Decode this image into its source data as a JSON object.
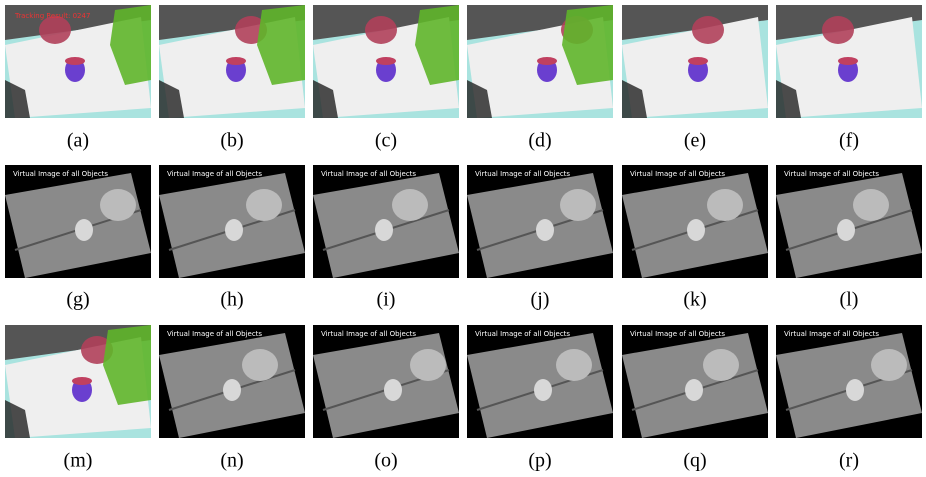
{
  "panels": [
    {
      "caption": "(a)",
      "overlay": "Tracking Result: 0247"
    },
    {
      "caption": "(b)"
    },
    {
      "caption": "(c)"
    },
    {
      "caption": "(d)"
    },
    {
      "caption": "(e)"
    },
    {
      "caption": "(f)"
    },
    {
      "caption": "(g)",
      "overlay": "Virtual Image of all Objects"
    },
    {
      "caption": "(h)",
      "overlay": "Virtual Image of all Objects"
    },
    {
      "caption": "(i)",
      "overlay": "Virtual Image of all Objects"
    },
    {
      "caption": "(j)",
      "overlay": "Virtual Image of all Objects"
    },
    {
      "caption": "(k)",
      "overlay": "Virtual Image of all Objects"
    },
    {
      "caption": "(l)",
      "overlay": "Virtual Image of all Objects"
    },
    {
      "caption": "(m)"
    },
    {
      "caption": "(n)",
      "overlay": "Virtual Image of all Objects"
    },
    {
      "caption": "(o)",
      "overlay": "Virtual Image of all Objects"
    },
    {
      "caption": "(p)",
      "overlay": "Virtual Image of all Objects"
    },
    {
      "caption": "(q)",
      "overlay": "Virtual Image of all Objects"
    },
    {
      "caption": "(r)",
      "overlay": "Virtual Image of all Objects"
    }
  ]
}
